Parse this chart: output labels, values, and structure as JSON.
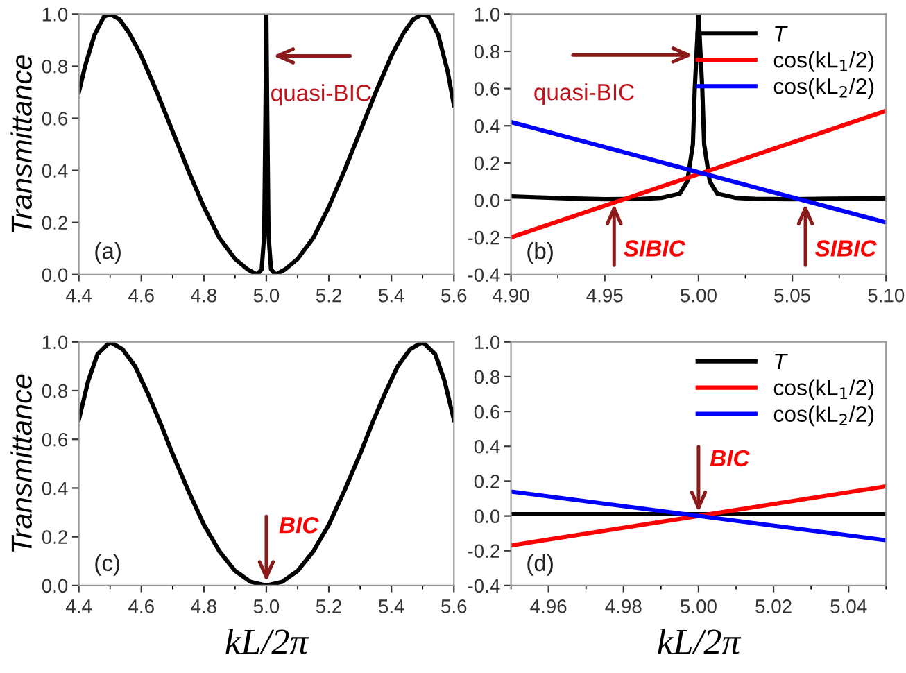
{
  "chart_data": [
    {
      "type": "line",
      "ylabel": "Transmittance",
      "xlim": [
        4.4,
        5.6
      ],
      "xticks": [
        4.4,
        4.6,
        4.8,
        {
          "value": 5.0,
          "label": "5.0"
        },
        5.2,
        5.4,
        5.6
      ],
      "ylim": [
        0,
        1
      ],
      "yticks": [
        {
          "value": 0,
          "label": "0.0"
        },
        0.2,
        0.4,
        0.6,
        0.8,
        {
          "value": 1.0,
          "label": "1.0"
        }
      ],
      "grid": false,
      "legend": false,
      "marker": "none",
      "line_style": "solid",
      "series": [
        {
          "color": "#000000",
          "x": [
            4.4,
            4.42,
            4.45,
            4.48,
            4.5,
            4.53,
            4.56,
            4.6,
            4.65,
            4.7,
            4.75,
            4.8,
            4.85,
            4.9,
            4.94,
            4.97,
            4.985,
            4.993,
            4.997,
            5.0,
            5.003,
            5.007,
            5.015,
            5.03,
            5.06,
            5.1,
            5.15,
            5.2,
            5.25,
            5.3,
            5.35,
            5.4,
            5.44,
            5.47,
            5.5,
            5.52,
            5.55,
            5.58,
            5.6
          ],
          "values": [
            0.7,
            0.8,
            0.92,
            0.99,
            1.0,
            0.98,
            0.93,
            0.84,
            0.7,
            0.55,
            0.4,
            0.26,
            0.14,
            0.06,
            0.02,
            0.0,
            0.02,
            0.15,
            0.6,
            1.0,
            0.6,
            0.15,
            0.02,
            0.0,
            0.02,
            0.06,
            0.14,
            0.26,
            0.4,
            0.55,
            0.7,
            0.84,
            0.93,
            0.98,
            1.0,
            0.99,
            0.92,
            0.78,
            0.65
          ]
        }
      ],
      "annotations": [
        "(a)",
        {
          "text": "quasi-BIC",
          "x": 5.01,
          "y": 0.84
        }
      ]
    },
    {
      "type": "line",
      "xlim": [
        4.9,
        5.1
      ],
      "xticks": [
        {
          "value": 4.9,
          "label": "4.90"
        },
        4.95,
        {
          "value": 5.0,
          "label": "5.00"
        },
        5.05,
        {
          "value": 5.1,
          "label": "5.10"
        }
      ],
      "ylim": [
        -0.4,
        1
      ],
      "yticks": [
        {
          "value": -0.4,
          "label": "-0.4"
        },
        {
          "value": -0.2,
          "label": "-0.2"
        },
        {
          "value": 0,
          "label": "0.0"
        },
        0.2,
        0.4,
        0.6,
        0.8,
        {
          "value": 1.0,
          "label": "1.0"
        }
      ],
      "grid": false,
      "legend": "top right",
      "marker": "none",
      "line_style": "solid",
      "series": [
        {
          "name": "T",
          "color": "#000000",
          "x": [
            4.9,
            4.93,
            4.95,
            4.97,
            4.98,
            4.99,
            4.994,
            4.997,
            4.998,
            5.0,
            5.002,
            5.003,
            5.006,
            5.01,
            5.02,
            5.03,
            5.05,
            5.07,
            5.1
          ],
          "values": [
            0.02,
            0.01,
            0.005,
            0.007,
            0.012,
            0.035,
            0.1,
            0.3,
            0.6,
            1.0,
            0.6,
            0.3,
            0.1,
            0.035,
            0.012,
            0.007,
            0.005,
            0.008,
            0.01
          ]
        },
        {
          "name": "cos(kL$_{1}$/2)",
          "color": "#ff0000",
          "x": [
            4.9,
            5.1
          ],
          "values": [
            -0.2,
            0.48
          ]
        },
        {
          "name": "cos(kL$_{2}$/2)",
          "color": "#0000ff",
          "x": [
            4.9,
            5.1
          ],
          "values": [
            0.42,
            -0.12
          ]
        }
      ],
      "annotations": [
        "(b)",
        {
          "text": "quasi-BIC",
          "x": 4.999,
          "y": 0.78
        },
        {
          "text": "SIBIC",
          "x": 4.955,
          "y": 0.0
        },
        {
          "text": "SIBIC",
          "x": 5.057,
          "y": 0.0
        }
      ]
    },
    {
      "type": "line",
      "ylabel": "Transmittance",
      "xlabel": "kL/2π",
      "xlim": [
        4.4,
        5.6
      ],
      "xticks": [
        4.4,
        4.6,
        4.8,
        {
          "value": 5.0,
          "label": "5.0"
        },
        5.2,
        5.4,
        5.6
      ],
      "ylim": [
        0,
        1
      ],
      "yticks": [
        {
          "value": 0,
          "label": "0.0"
        },
        0.2,
        0.4,
        0.6,
        0.8,
        {
          "value": 1.0,
          "label": "1.0"
        }
      ],
      "grid": false,
      "legend": false,
      "marker": "none",
      "line_style": "solid",
      "series": [
        {
          "color": "#000000",
          "x": [
            4.4,
            4.43,
            4.46,
            4.5,
            4.54,
            4.58,
            4.62,
            4.66,
            4.7,
            4.75,
            4.8,
            4.85,
            4.9,
            4.95,
            5.0,
            5.05,
            5.1,
            5.15,
            5.2,
            5.25,
            5.3,
            5.34,
            5.38,
            5.42,
            5.46,
            5.5,
            5.54,
            5.57,
            5.6
          ],
          "values": [
            0.68,
            0.84,
            0.95,
            1.0,
            0.97,
            0.9,
            0.79,
            0.67,
            0.54,
            0.39,
            0.25,
            0.14,
            0.06,
            0.015,
            0.0,
            0.015,
            0.06,
            0.14,
            0.25,
            0.39,
            0.54,
            0.67,
            0.79,
            0.9,
            0.97,
            1.0,
            0.95,
            0.84,
            0.68
          ]
        }
      ],
      "annotations": [
        "(c)",
        {
          "text": "BIC",
          "x": 5.0,
          "y": 0.0
        }
      ]
    },
    {
      "type": "line",
      "xlabel": "kL/2π",
      "xlim": [
        4.95,
        5.05
      ],
      "xticks": [
        4.96,
        4.98,
        {
          "value": 5.0,
          "label": "5.00"
        },
        5.02,
        5.04
      ],
      "ylim": [
        -0.4,
        1
      ],
      "yticks": [
        {
          "value": -0.4,
          "label": "-0.4"
        },
        {
          "value": -0.2,
          "label": "-0.2"
        },
        {
          "value": 0,
          "label": "0.0"
        },
        0.2,
        0.4,
        0.6,
        0.8,
        {
          "value": 1.0,
          "label": "1.0"
        }
      ],
      "grid": false,
      "legend": "top right",
      "marker": "none",
      "line_style": "solid",
      "series": [
        {
          "name": "T",
          "color": "#000000",
          "x": [
            4.95,
            5.0,
            5.05
          ],
          "values": [
            0.01,
            0.01,
            0.01
          ]
        },
        {
          "name": "cos(kL$_{1}$/2)",
          "color": "#ff0000",
          "x": [
            4.95,
            5.05
          ],
          "values": [
            -0.17,
            0.17
          ]
        },
        {
          "name": "cos(kL$_{2}$/2)",
          "color": "#0000ff",
          "x": [
            4.95,
            5.05
          ],
          "values": [
            0.14,
            -0.14
          ]
        }
      ],
      "annotations": [
        "(d)",
        {
          "text": "BIC",
          "x": 5.0,
          "y": 0.0
        }
      ]
    }
  ]
}
